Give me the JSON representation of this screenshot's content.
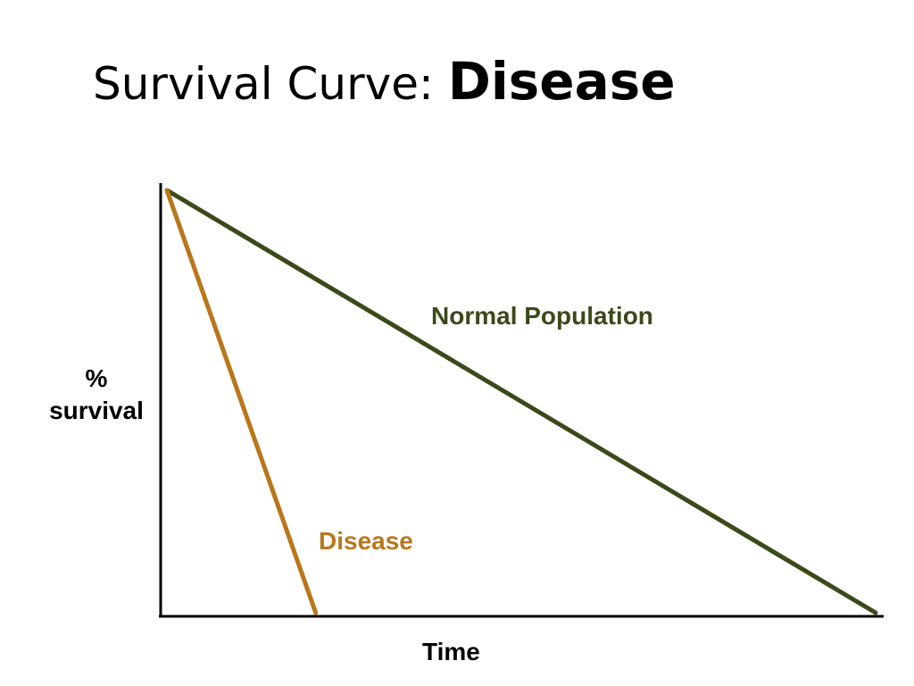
{
  "title": {
    "prefix": "Survival Curve: ",
    "emphasis": "Disease"
  },
  "chart_data": {
    "type": "line",
    "title": "Survival Curve: Disease",
    "xlabel": "Time",
    "ylabel_lines": [
      "%",
      "survival"
    ],
    "xlim": [
      0,
      1
    ],
    "ylim": [
      0,
      1
    ],
    "grid": false,
    "axis_ticks": false,
    "series": [
      {
        "name": "Normal Population",
        "color": "#3a4a1a",
        "x": [
          0,
          1
        ],
        "y": [
          1,
          0
        ]
      },
      {
        "name": "Disease",
        "color": "#b8771c",
        "x": [
          0,
          0.21
        ],
        "y": [
          1,
          0
        ]
      }
    ]
  }
}
